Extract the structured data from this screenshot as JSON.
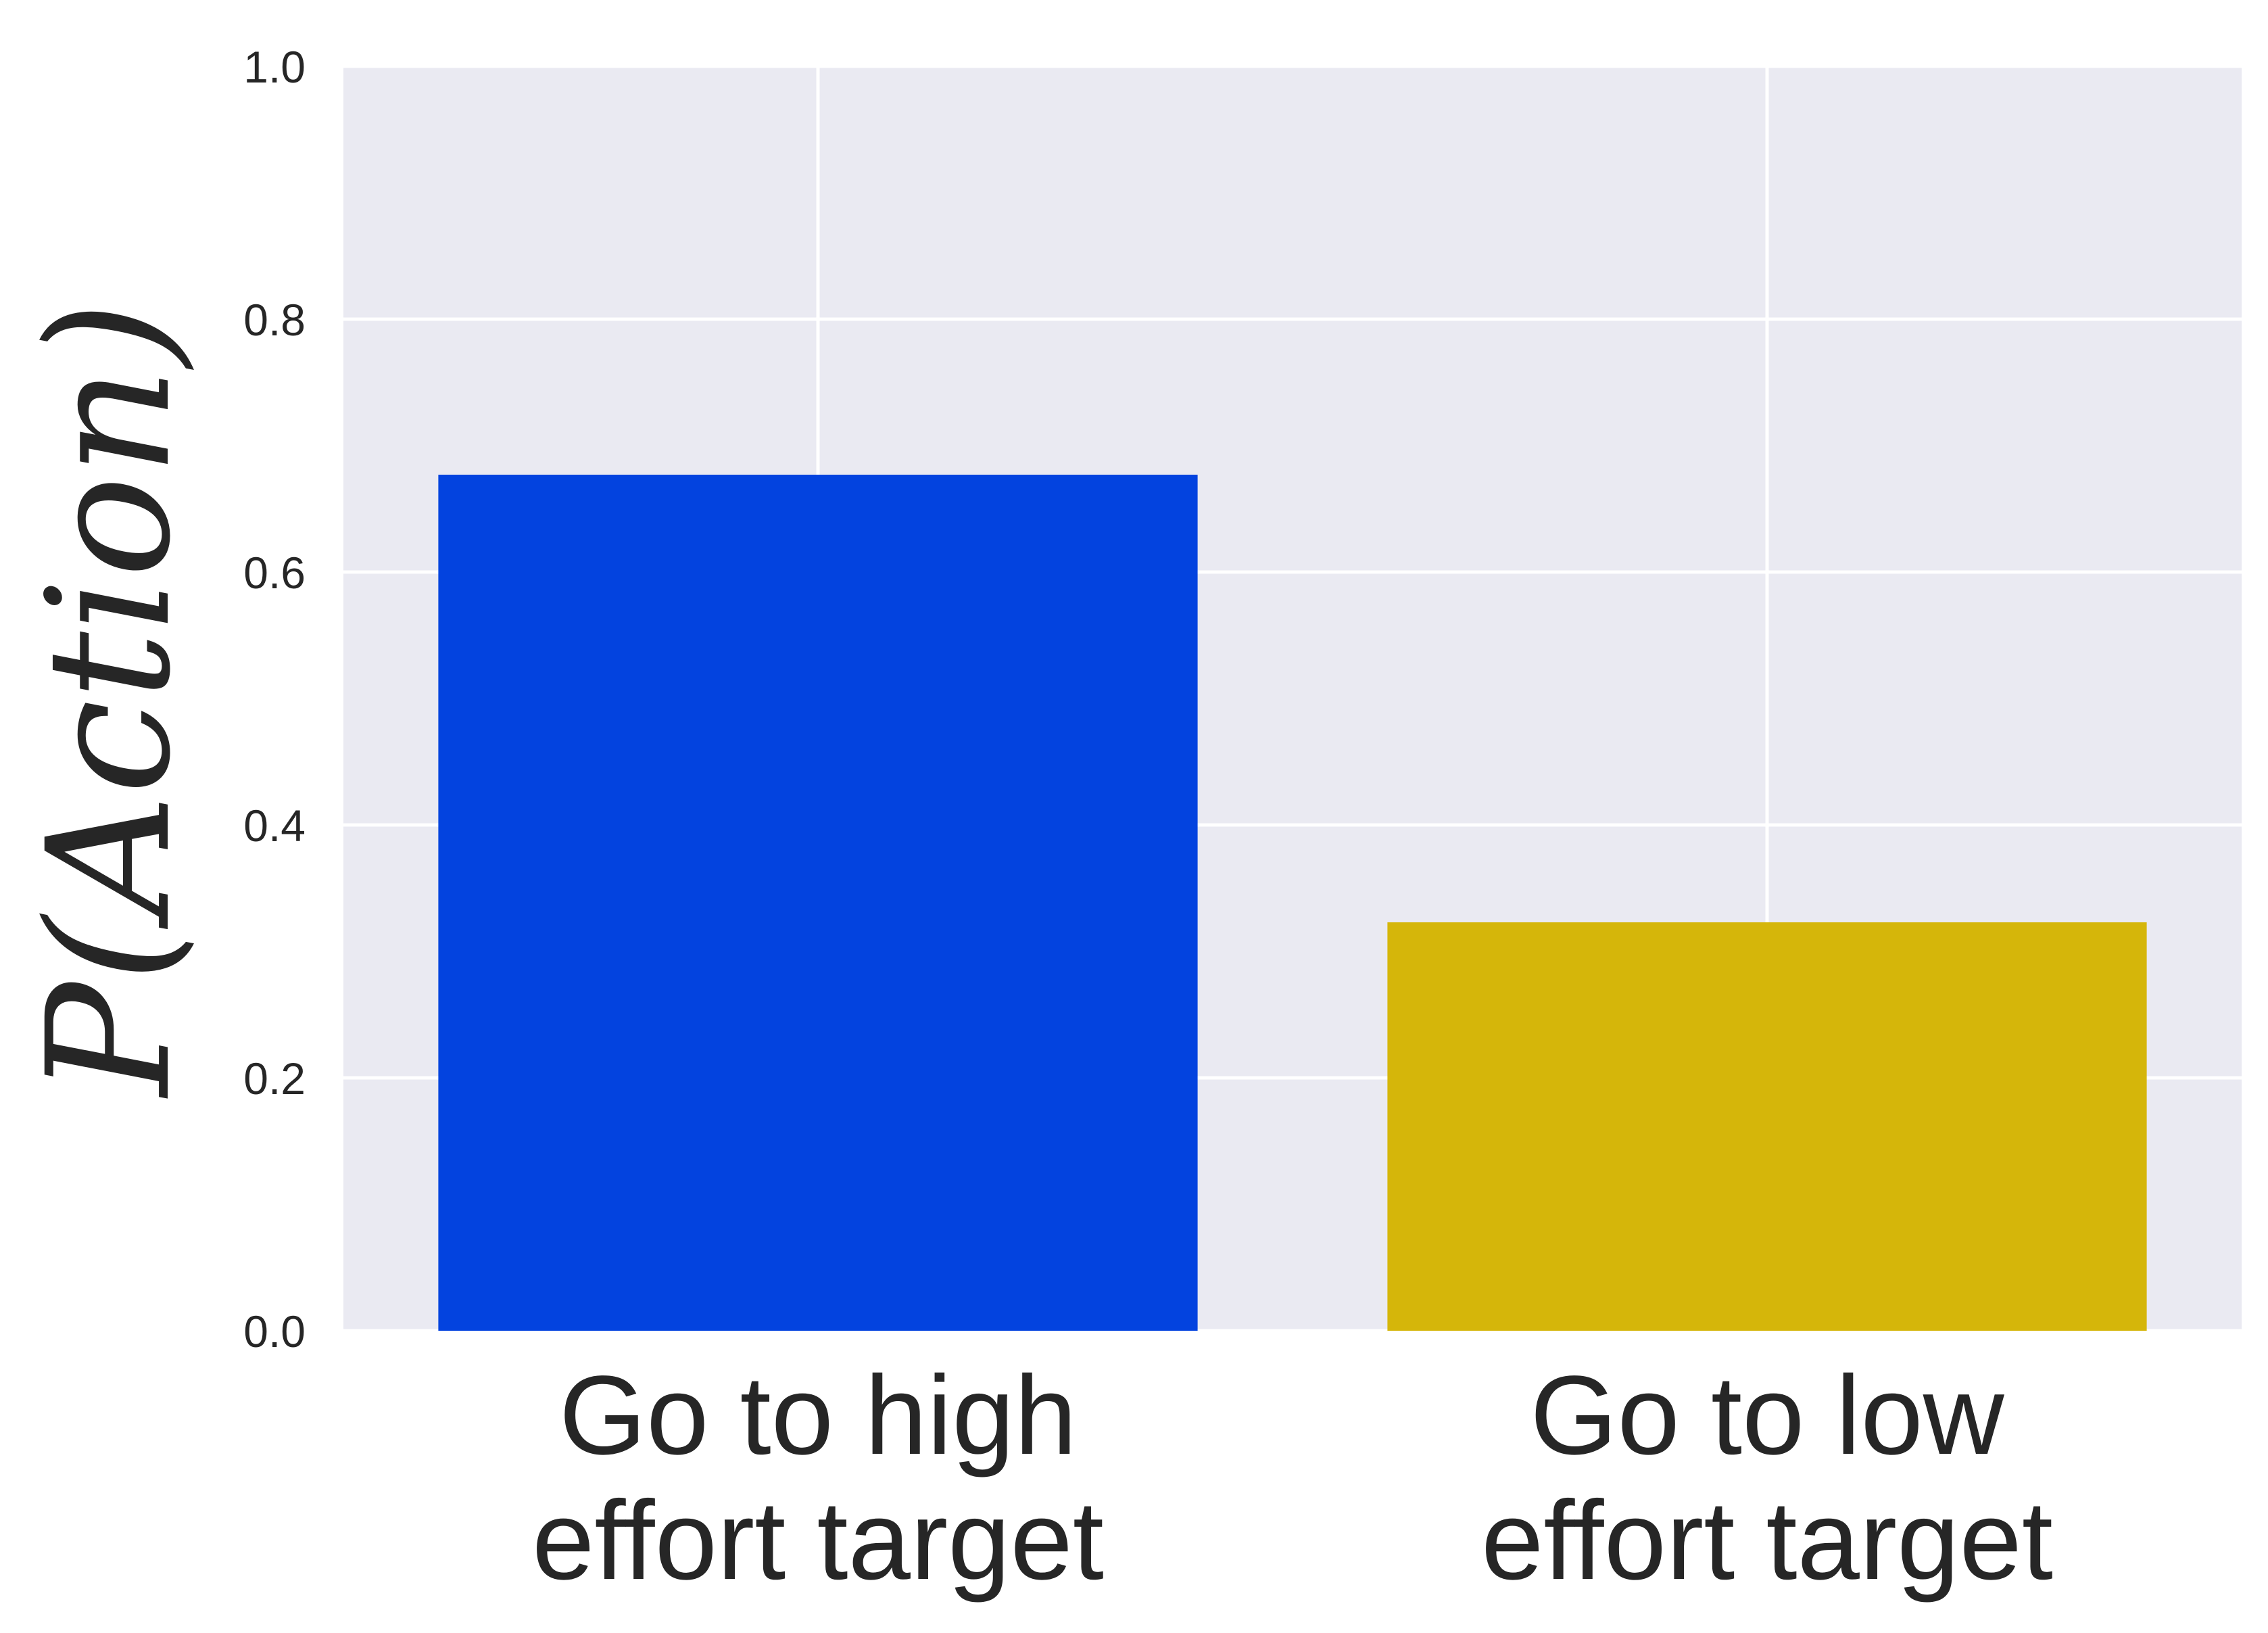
{
  "chart_data": {
    "type": "bar",
    "categories": [
      "Go to high\neffort target",
      "Go to low\neffort target"
    ],
    "values": [
      0.677,
      0.323
    ],
    "colors": [
      "#0343df",
      "#d5b60a"
    ],
    "ylabel": "P(Action)",
    "xlabel": "",
    "ylim": [
      0,
      1.0
    ],
    "yticks": [
      "0.0",
      "0.2",
      "0.4",
      "0.6",
      "0.8",
      "1.0"
    ],
    "grid": true,
    "background": "#eaeaf2"
  }
}
